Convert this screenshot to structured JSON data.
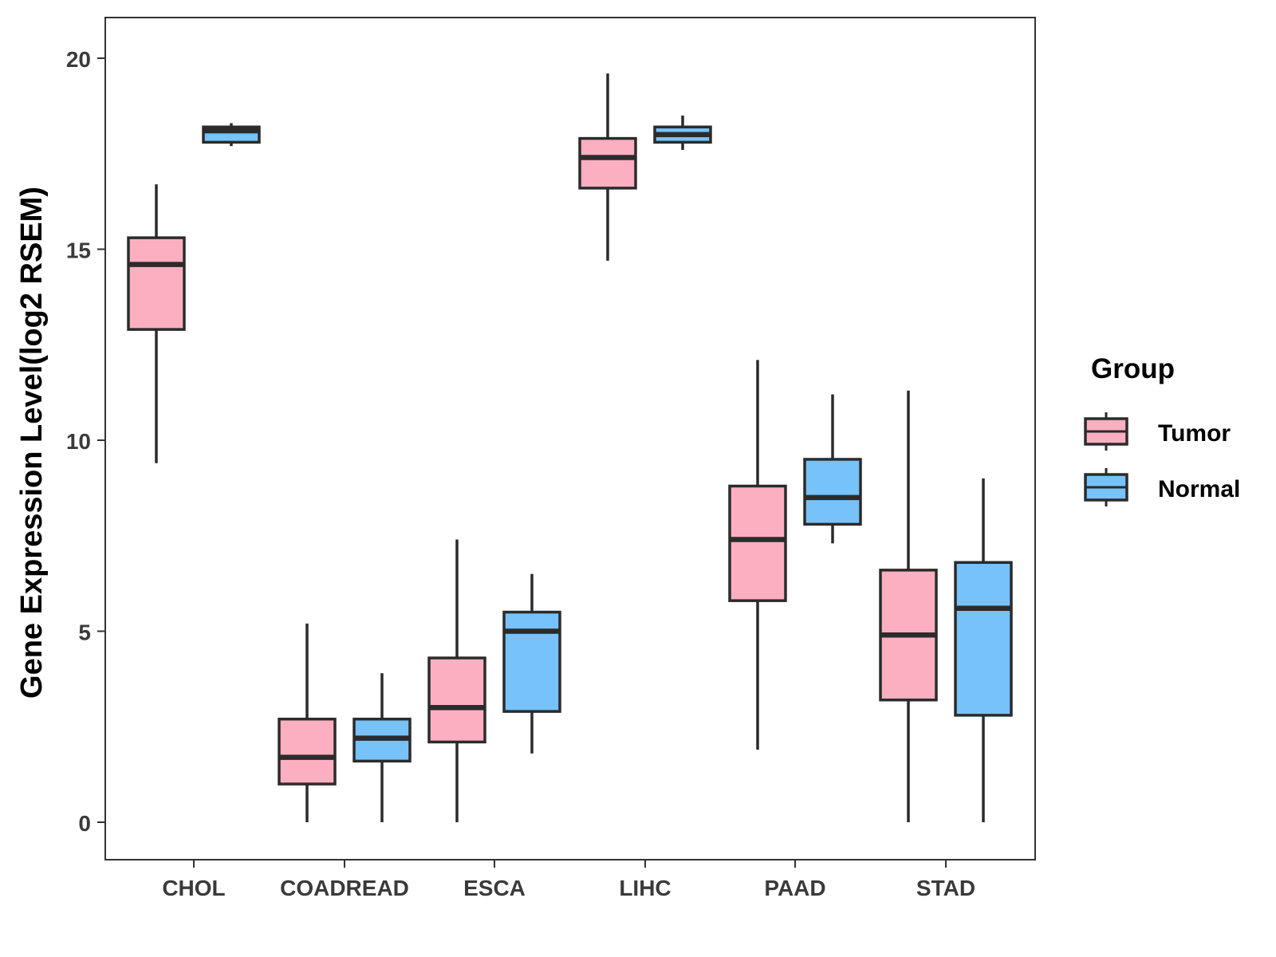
{
  "chart_data": {
    "type": "boxplot",
    "title": "",
    "xlabel": "",
    "ylabel": "Gene Expression Level(log2 RSEM)",
    "ylim": [
      -1,
      21
    ],
    "yticks": [
      0,
      5,
      10,
      15,
      20
    ],
    "ytick_labels": [
      "0",
      "5",
      "10",
      "15",
      "20"
    ],
    "categories": [
      "CHOL",
      "COADREAD",
      "ESCA",
      "LIHC",
      "PAAD",
      "STAD"
    ],
    "legend": {
      "title": "Group",
      "placement": "right",
      "entries": [
        "Tumor",
        "Normal"
      ]
    },
    "colors": {
      "Tumor": "#fbafc1",
      "Normal": "#77c2f8",
      "line": "#2b2b2b"
    },
    "series": [
      {
        "name": "Tumor",
        "boxes": [
          {
            "category": "CHOL",
            "min": 9.4,
            "q1": 12.9,
            "median": 14.6,
            "q3": 15.3,
            "max": 16.7
          },
          {
            "category": "COADREAD",
            "min": 0.0,
            "q1": 1.0,
            "median": 1.7,
            "q3": 2.7,
            "max": 5.2
          },
          {
            "category": "ESCA",
            "min": 0.0,
            "q1": 2.1,
            "median": 3.0,
            "q3": 4.3,
            "max": 7.4
          },
          {
            "category": "LIHC",
            "min": 14.7,
            "q1": 16.6,
            "median": 17.4,
            "q3": 17.9,
            "max": 19.6
          },
          {
            "category": "PAAD",
            "min": 1.9,
            "q1": 5.8,
            "median": 7.4,
            "q3": 8.8,
            "max": 12.1
          },
          {
            "category": "STAD",
            "min": 0.0,
            "q1": 3.2,
            "median": 4.9,
            "q3": 6.6,
            "max": 11.3
          }
        ]
      },
      {
        "name": "Normal",
        "boxes": [
          {
            "category": "CHOL",
            "min": 17.7,
            "q1": 17.8,
            "median": 18.1,
            "q3": 18.2,
            "max": 18.3
          },
          {
            "category": "COADREAD",
            "min": 0.0,
            "q1": 1.6,
            "median": 2.2,
            "q3": 2.7,
            "max": 3.9
          },
          {
            "category": "ESCA",
            "min": 1.8,
            "q1": 2.9,
            "median": 5.0,
            "q3": 5.5,
            "max": 6.5
          },
          {
            "category": "LIHC",
            "min": 17.6,
            "q1": 17.8,
            "median": 18.0,
            "q3": 18.2,
            "max": 18.5
          },
          {
            "category": "PAAD",
            "min": 7.3,
            "q1": 7.8,
            "median": 8.5,
            "q3": 9.5,
            "max": 11.2
          },
          {
            "category": "STAD",
            "min": 0.0,
            "q1": 2.8,
            "median": 5.6,
            "q3": 6.8,
            "max": 9.0
          }
        ]
      }
    ]
  }
}
